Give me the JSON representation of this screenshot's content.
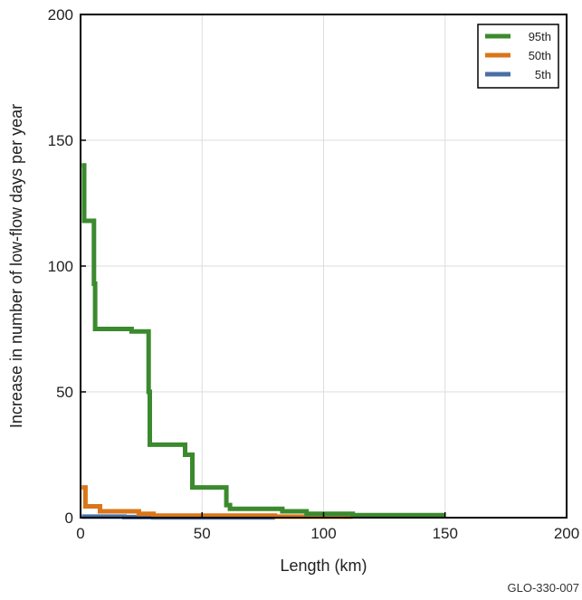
{
  "figure_id": "GLO-330-007",
  "chart_data": {
    "type": "line",
    "step": true,
    "xlabel": "Length (km)",
    "ylabel": "Increase in number of low-flow days per year",
    "xlim": [
      0,
      200
    ],
    "ylim": [
      0,
      200
    ],
    "xticks": [
      0,
      50,
      100,
      150,
      200
    ],
    "yticks": [
      0,
      50,
      100,
      150,
      200
    ],
    "grid": true,
    "legend_position": "top-right",
    "series": [
      {
        "name": "95th",
        "color": "#3b8a2e",
        "points": [
          [
            0.5,
            140
          ],
          [
            1.5,
            140
          ],
          [
            1.5,
            118
          ],
          [
            5.5,
            118
          ],
          [
            5.5,
            93
          ],
          [
            6,
            93
          ],
          [
            6,
            75
          ],
          [
            21,
            75
          ],
          [
            21,
            74
          ],
          [
            28,
            74
          ],
          [
            28,
            50
          ],
          [
            28.5,
            50
          ],
          [
            28.5,
            29
          ],
          [
            43,
            29
          ],
          [
            43,
            25
          ],
          [
            46,
            25
          ],
          [
            46,
            12
          ],
          [
            60,
            12
          ],
          [
            60,
            5
          ],
          [
            61.5,
            5
          ],
          [
            61.5,
            3.5
          ],
          [
            83,
            3.5
          ],
          [
            83,
            2.5
          ],
          [
            93,
            2.5
          ],
          [
            93,
            1.5
          ],
          [
            112,
            1.5
          ],
          [
            112,
            1
          ],
          [
            150,
            1
          ]
        ]
      },
      {
        "name": "50th",
        "color": "#d9761a",
        "points": [
          [
            0.5,
            12
          ],
          [
            2,
            12
          ],
          [
            2,
            4.5
          ],
          [
            8,
            4.5
          ],
          [
            8,
            2.5
          ],
          [
            24,
            2.5
          ],
          [
            24,
            1.5
          ],
          [
            30,
            1.5
          ],
          [
            30,
            0.8
          ],
          [
            80,
            0.8
          ],
          [
            80,
            0.4
          ],
          [
            112,
            0.4
          ]
        ]
      },
      {
        "name": "5th",
        "color": "#4a6fa5",
        "points": [
          [
            0.5,
            0.4
          ],
          [
            18,
            0.4
          ],
          [
            18,
            0.2
          ],
          [
            30,
            0.2
          ],
          [
            30,
            0.1
          ],
          [
            80,
            0.1
          ]
        ]
      }
    ]
  }
}
